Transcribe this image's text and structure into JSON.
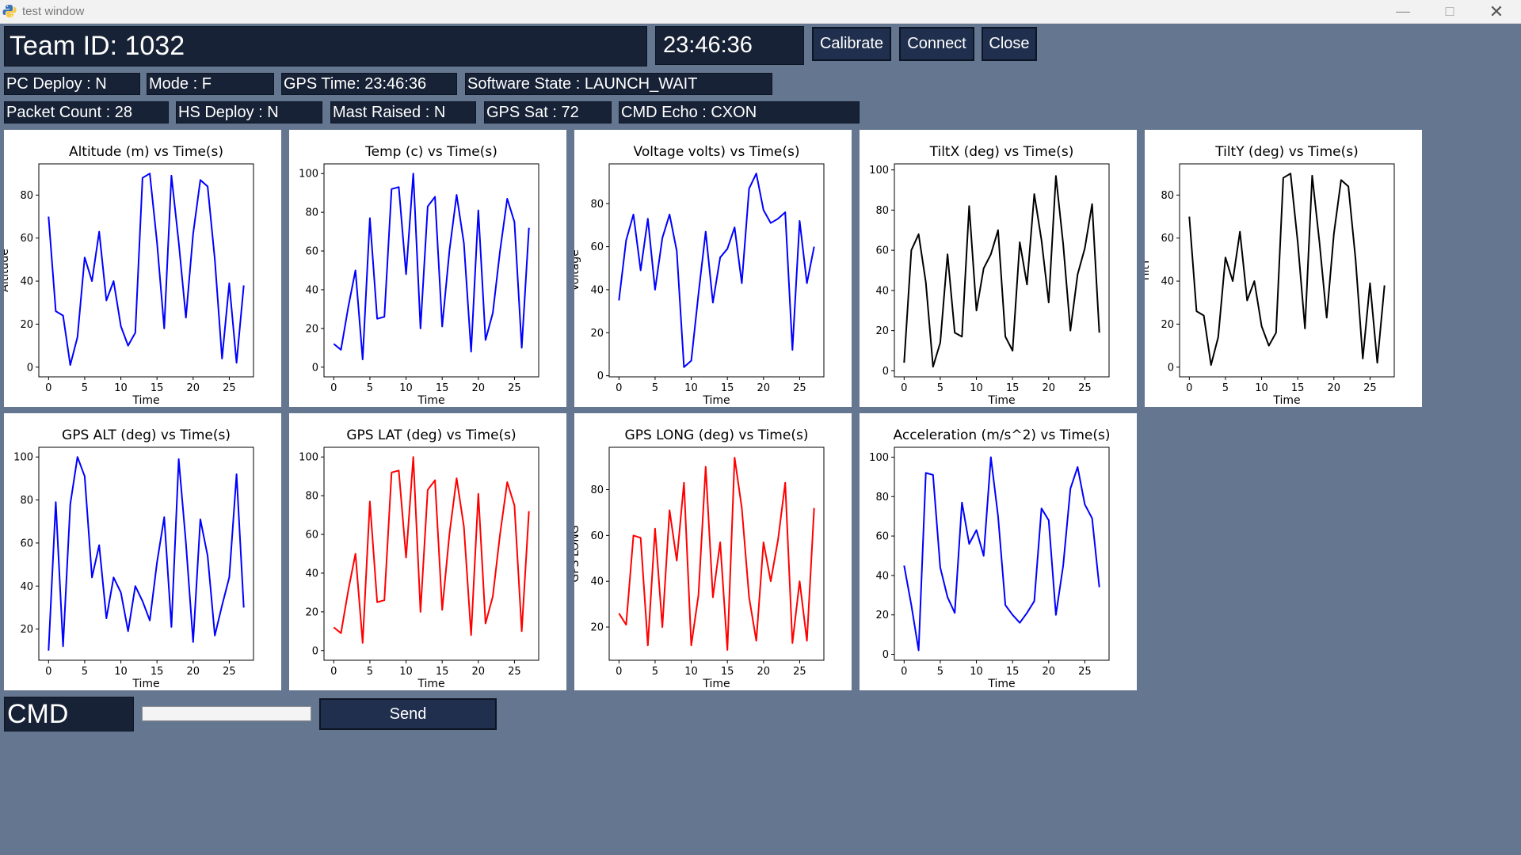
{
  "window": {
    "title": "test window"
  },
  "header": {
    "team_id": "Team ID: 1032",
    "clock": "23:46:36",
    "buttons": {
      "calibrate": "Calibrate",
      "connect": "Connect",
      "close": "Close"
    }
  },
  "status": {
    "row1": [
      "PC Deploy : N",
      "Mode : F",
      "GPS Time: 23:46:36",
      "Software State : LAUNCH_WAIT"
    ],
    "row2": [
      "Packet Count : 28",
      "HS Deploy : N",
      "Mast Raised : N",
      "GPS Sat : 72",
      "CMD Echo : CXON"
    ]
  },
  "colors": {
    "background": "#657790",
    "box": "#172236",
    "blue": "#0000ff",
    "red": "#ff0000",
    "black": "#000000"
  },
  "chart_data": [
    {
      "type": "line",
      "title": "Altitude (m) vs Time(s)",
      "xlabel": "Time",
      "ylabel": "Altitude",
      "color": "#0000ff",
      "xlim": [
        -1.35,
        28.35
      ],
      "ylim": [
        -4.5,
        94.5
      ],
      "xticks": [
        0,
        5,
        10,
        15,
        20,
        25
      ],
      "yticks": [
        0,
        20,
        40,
        60,
        80
      ],
      "x": [
        0,
        1,
        2,
        3,
        4,
        5,
        6,
        7,
        8,
        9,
        10,
        11,
        12,
        13,
        14,
        15,
        16,
        17,
        18,
        19,
        20,
        21,
        22,
        23,
        24,
        25,
        26,
        27
      ],
      "y": [
        70,
        26,
        24,
        1,
        14,
        51,
        40,
        63,
        31,
        40,
        19,
        10,
        16,
        88,
        90,
        58,
        18,
        89,
        58,
        23,
        62,
        87,
        84,
        50,
        4,
        39,
        2,
        38
      ]
    },
    {
      "type": "line",
      "title": "Temp (c) vs Time(s)",
      "xlabel": "Time",
      "ylabel": "",
      "color": "#0000ff",
      "xlim": [
        -1.35,
        28.35
      ],
      "ylim": [
        -5,
        105
      ],
      "xticks": [
        0,
        5,
        10,
        15,
        20,
        25
      ],
      "yticks": [
        0,
        20,
        40,
        60,
        80,
        100
      ],
      "x": [
        0,
        1,
        2,
        3,
        4,
        5,
        6,
        7,
        8,
        9,
        10,
        11,
        12,
        13,
        14,
        15,
        16,
        17,
        18,
        19,
        20,
        21,
        22,
        23,
        24,
        25,
        26,
        27
      ],
      "y": [
        12,
        9,
        31,
        50,
        4,
        77,
        25,
        26,
        92,
        93,
        48,
        100,
        20,
        83,
        88,
        21,
        60,
        89,
        64,
        8,
        81,
        14,
        28,
        60,
        87,
        75,
        10,
        72
      ]
    },
    {
      "type": "line",
      "title": "Voltage volts) vs Time(s)",
      "xlabel": "Time",
      "ylabel": "Voltage",
      "color": "#0000ff",
      "xlim": [
        -1.35,
        28.35
      ],
      "ylim": [
        -0.5,
        98.5
      ],
      "xticks": [
        0,
        5,
        10,
        15,
        20,
        25
      ],
      "yticks": [
        0,
        20,
        40,
        60,
        80
      ],
      "x": [
        0,
        1,
        2,
        3,
        4,
        5,
        6,
        7,
        8,
        9,
        10,
        11,
        12,
        13,
        14,
        15,
        16,
        17,
        18,
        19,
        20,
        21,
        22,
        23,
        24,
        25,
        26,
        27
      ],
      "y": [
        35,
        63,
        75,
        49,
        73,
        40,
        64,
        75,
        58,
        4,
        7,
        38,
        67,
        34,
        55,
        59,
        69,
        43,
        87,
        94,
        77,
        71,
        73,
        76,
        12,
        72,
        43,
        60
      ]
    },
    {
      "type": "line",
      "title": "TiltX (deg) vs Time(s)",
      "xlabel": "Time",
      "ylabel": "",
      "color": "#000000",
      "xlim": [
        -1.35,
        28.35
      ],
      "ylim": [
        -3,
        103
      ],
      "xticks": [
        0,
        5,
        10,
        15,
        20,
        25
      ],
      "yticks": [
        0,
        20,
        40,
        60,
        80,
        100
      ],
      "x": [
        0,
        1,
        2,
        3,
        4,
        5,
        6,
        7,
        8,
        9,
        10,
        11,
        12,
        13,
        14,
        15,
        16,
        17,
        18,
        19,
        20,
        21,
        22,
        23,
        24,
        25,
        26,
        27
      ],
      "y": [
        4,
        60,
        68,
        44,
        2,
        14,
        58,
        19,
        17,
        82,
        30,
        51,
        58,
        70,
        17,
        10,
        64,
        43,
        88,
        65,
        34,
        97,
        63,
        20,
        48,
        61,
        83,
        19
      ]
    },
    {
      "type": "line",
      "title": "TiltY (deg) vs Time(s)",
      "xlabel": "Time",
      "ylabel": "TiltY",
      "color": "#000000",
      "xlim": [
        -1.35,
        28.35
      ],
      "ylim": [
        -4.5,
        94.5
      ],
      "xticks": [
        0,
        5,
        10,
        15,
        20,
        25
      ],
      "yticks": [
        0,
        20,
        40,
        60,
        80
      ],
      "x": [
        0,
        1,
        2,
        3,
        4,
        5,
        6,
        7,
        8,
        9,
        10,
        11,
        12,
        13,
        14,
        15,
        16,
        17,
        18,
        19,
        20,
        21,
        22,
        23,
        24,
        25,
        26,
        27
      ],
      "y": [
        70,
        26,
        24,
        1,
        14,
        51,
        40,
        63,
        31,
        40,
        19,
        10,
        16,
        88,
        90,
        58,
        18,
        89,
        58,
        23,
        62,
        87,
        84,
        50,
        4,
        39,
        2,
        38
      ]
    },
    {
      "type": "line",
      "title": "GPS ALT (deg) vs Time(s)",
      "xlabel": "Time",
      "ylabel": "",
      "color": "#0000ff",
      "xlim": [
        -1.35,
        28.35
      ],
      "ylim": [
        5.5,
        104.5
      ],
      "xticks": [
        0,
        5,
        10,
        15,
        20,
        25
      ],
      "yticks": [
        20,
        40,
        60,
        80,
        100
      ],
      "x": [
        0,
        1,
        2,
        3,
        4,
        5,
        6,
        7,
        8,
        9,
        10,
        11,
        12,
        13,
        14,
        15,
        16,
        17,
        18,
        19,
        20,
        21,
        22,
        23,
        24,
        25,
        26,
        27
      ],
      "y": [
        10,
        79,
        12,
        78,
        100,
        91,
        44,
        59,
        25,
        44,
        37,
        19,
        40,
        33,
        24,
        51,
        72,
        21,
        99,
        60,
        14,
        71,
        54,
        17,
        31,
        44,
        92,
        30
      ]
    },
    {
      "type": "line",
      "title": "GPS LAT (deg) vs Time(s)",
      "xlabel": "Time",
      "ylabel": "",
      "color": "#ff0000",
      "xlim": [
        -1.35,
        28.35
      ],
      "ylim": [
        -5,
        105
      ],
      "xticks": [
        0,
        5,
        10,
        15,
        20,
        25
      ],
      "yticks": [
        0,
        20,
        40,
        60,
        80,
        100
      ],
      "x": [
        0,
        1,
        2,
        3,
        4,
        5,
        6,
        7,
        8,
        9,
        10,
        11,
        12,
        13,
        14,
        15,
        16,
        17,
        18,
        19,
        20,
        21,
        22,
        23,
        24,
        25,
        26,
        27
      ],
      "y": [
        12,
        9,
        31,
        50,
        4,
        77,
        25,
        26,
        92,
        93,
        48,
        100,
        20,
        83,
        88,
        21,
        60,
        89,
        64,
        8,
        81,
        14,
        28,
        60,
        87,
        75,
        10,
        72
      ]
    },
    {
      "type": "line",
      "title": "GPS LONG (deg) vs Time(s)",
      "xlabel": "Time",
      "ylabel": "GPS LONG",
      "color": "#ff0000",
      "xlim": [
        -1.35,
        28.35
      ],
      "ylim": [
        5.5,
        98.5
      ],
      "xticks": [
        0,
        5,
        10,
        15,
        20,
        25
      ],
      "yticks": [
        20,
        40,
        60,
        80
      ],
      "x": [
        0,
        1,
        2,
        3,
        4,
        5,
        6,
        7,
        8,
        9,
        10,
        11,
        12,
        13,
        14,
        15,
        16,
        17,
        18,
        19,
        20,
        21,
        22,
        23,
        24,
        25,
        26,
        27
      ],
      "y": [
        26,
        21,
        60,
        59,
        12,
        63,
        20,
        71,
        49,
        83,
        12,
        34,
        90,
        33,
        57,
        10,
        94,
        72,
        33,
        14,
        57,
        40,
        58,
        83,
        13,
        40,
        14,
        72
      ]
    },
    {
      "type": "line",
      "title": "Acceleration (m/s^2) vs Time(s)",
      "xlabel": "Time",
      "ylabel": "",
      "color": "#0000ff",
      "xlim": [
        -1.35,
        28.35
      ],
      "ylim": [
        -3,
        105
      ],
      "xticks": [
        0,
        5,
        10,
        15,
        20,
        25
      ],
      "yticks": [
        0,
        20,
        40,
        60,
        80,
        100
      ],
      "x": [
        0,
        1,
        2,
        3,
        4,
        5,
        6,
        7,
        8,
        9,
        10,
        11,
        12,
        13,
        14,
        15,
        16,
        17,
        18,
        19,
        20,
        21,
        22,
        23,
        24,
        25,
        26,
        27
      ],
      "y": [
        45,
        25,
        2,
        92,
        91,
        44,
        29,
        21,
        77,
        56,
        63,
        50,
        100,
        70,
        25,
        20,
        16,
        21,
        27,
        74,
        68,
        20,
        45,
        84,
        95,
        76,
        69,
        34
      ]
    }
  ],
  "cmd": {
    "label": "CMD",
    "input_value": "",
    "send_label": "Send"
  }
}
